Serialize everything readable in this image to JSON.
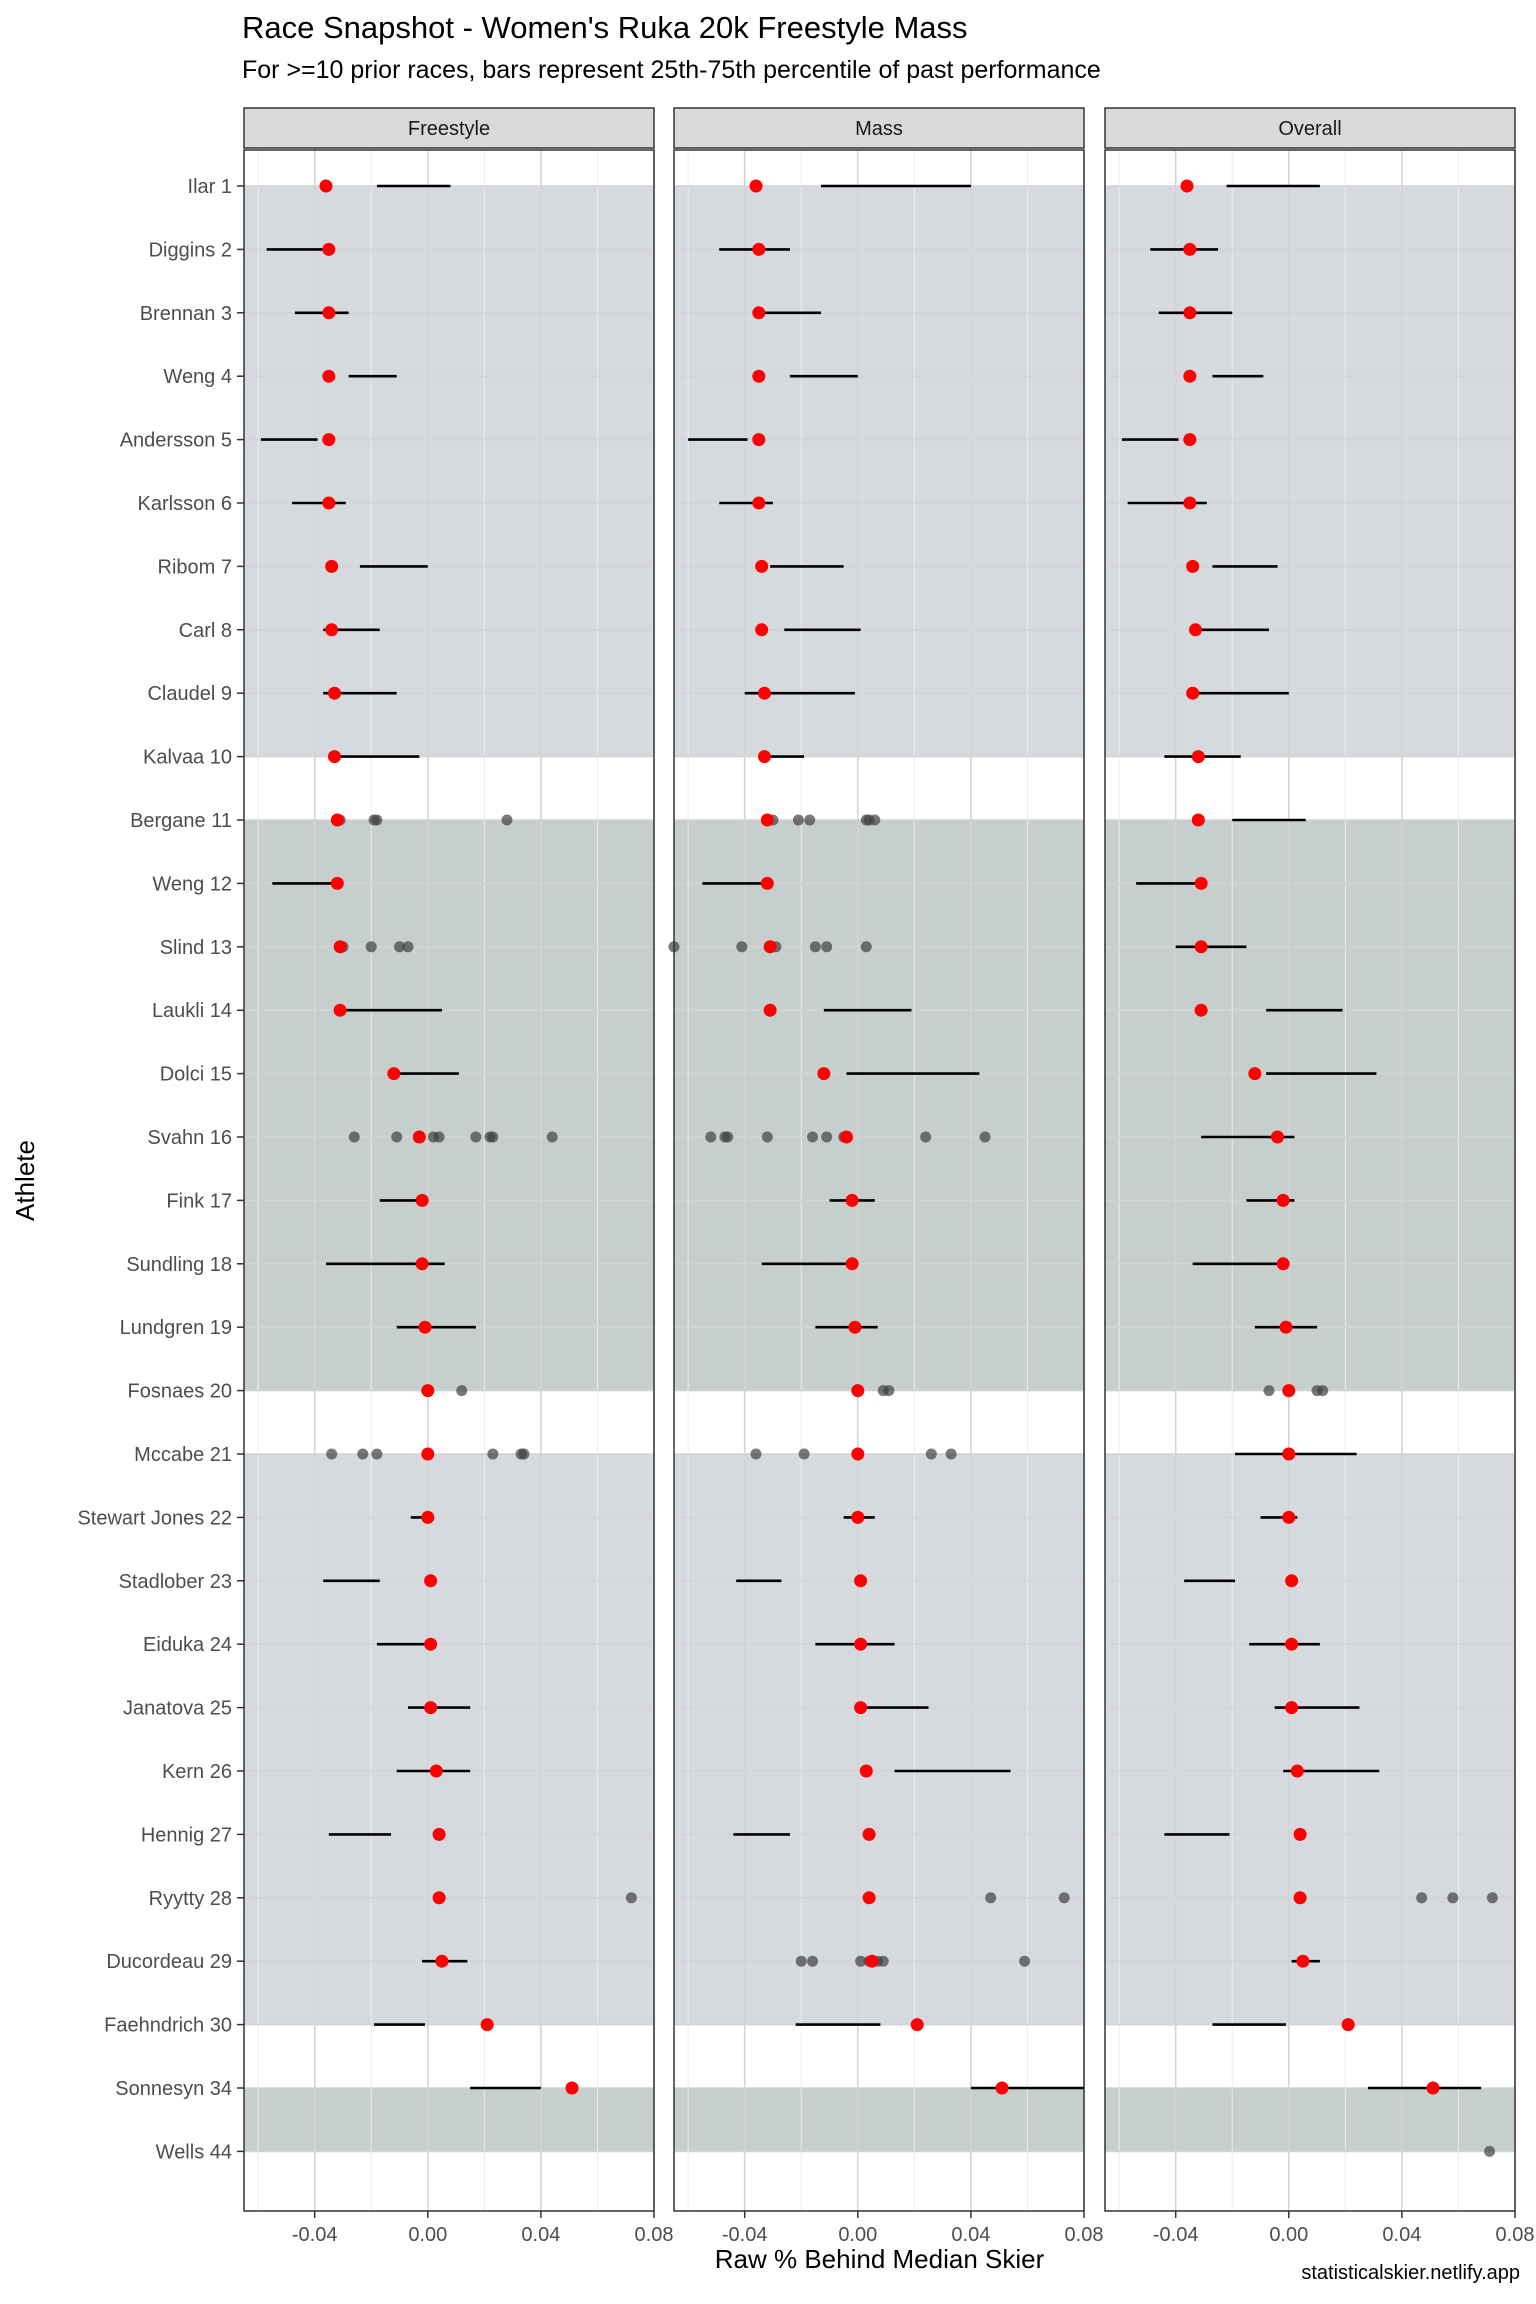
{
  "header": {
    "title": "Race Snapshot -  Women's Ruka 20k Freestyle Mass",
    "subtitle": "For >=10 prior races, bars represent 25th-75th percentile of past performance"
  },
  "footer": {
    "credit": "statisticalskier.netlify.app"
  },
  "colors": {
    "panel_border": "#333333",
    "strip_fill": "#d9d9d9",
    "band_light": "#d6dadf",
    "band_dark": "#c6cfce",
    "grid_major": "#d4d4d4",
    "grid_minor": "#ececec",
    "current_point": "#ff0000",
    "past_point": "#404040",
    "bar": "#000000"
  },
  "chart_data": {
    "type": "scatter",
    "title": "Race Snapshot -  Women's Ruka 20k Freestyle Mass",
    "subtitle": "For >=10 prior races, bars represent 25th-75th percentile of past performance",
    "xlabel": "Raw % Behind Median Skier",
    "ylabel": "Athlete",
    "xlim": [
      -0.065,
      0.08
    ],
    "x_ticks": [
      -0.04,
      0.0,
      0.04,
      0.08
    ],
    "x_tick_labels": [
      "-0.04",
      "0.00",
      "0.04",
      "0.08"
    ],
    "panels": [
      "Freestyle",
      "Mass",
      "Overall"
    ],
    "athletes": [
      "Ilar 1",
      "Diggins 2",
      "Brennan 3",
      "Weng 4",
      "Andersson 5",
      "Karlsson 6",
      "Ribom 7",
      "Carl 8",
      "Claudel 9",
      "Kalvaa 10",
      "Bergane 11",
      "Weng 12",
      "Slind 13",
      "Laukli 14",
      "Dolci 15",
      "Svahn 16",
      "Fink 17",
      "Sundling 18",
      "Lundgren 19",
      "Fosnaes 20",
      "Mccabe 21",
      "Stewart Jones 22",
      "Stadlober 23",
      "Eiduka 24",
      "Janatova 25",
      "Kern 26",
      "Hennig 27",
      "Ryytty 28",
      "Ducordeau 29",
      "Faehndrich 30",
      "Sonnesyn 34",
      "Wells 44"
    ],
    "bands": [
      {
        "from": 0,
        "to": 9,
        "shade": "light"
      },
      {
        "from": 10,
        "to": 19,
        "shade": "dark"
      },
      {
        "from": 20,
        "to": 29,
        "shade": "light"
      },
      {
        "from": 30,
        "to": 31,
        "shade": "dark"
      }
    ],
    "series": [
      {
        "name": "Freestyle",
        "rows": [
          {
            "athlete": "Ilar 1",
            "current": -0.036,
            "bar": [
              -0.018,
              0.008
            ]
          },
          {
            "athlete": "Diggins 2",
            "current": -0.035,
            "bar": [
              -0.057,
              -0.035
            ]
          },
          {
            "athlete": "Brennan 3",
            "current": -0.035,
            "bar": [
              -0.047,
              -0.028
            ]
          },
          {
            "athlete": "Weng 4",
            "current": -0.035,
            "bar": [
              -0.028,
              -0.011
            ]
          },
          {
            "athlete": "Andersson 5",
            "current": -0.035,
            "bar": [
              -0.059,
              -0.039
            ]
          },
          {
            "athlete": "Karlsson 6",
            "current": -0.035,
            "bar": [
              -0.048,
              -0.029
            ]
          },
          {
            "athlete": "Ribom 7",
            "current": -0.034,
            "bar": [
              -0.024,
              0.0
            ]
          },
          {
            "athlete": "Carl 8",
            "current": -0.034,
            "bar": [
              -0.037,
              -0.017
            ]
          },
          {
            "athlete": "Claudel 9",
            "current": -0.033,
            "bar": [
              -0.037,
              -0.011
            ]
          },
          {
            "athlete": "Kalvaa 10",
            "current": -0.033,
            "bar": [
              -0.031,
              -0.003
            ]
          },
          {
            "athlete": "Bergane 11",
            "current": -0.032,
            "past": [
              -0.031,
              -0.019,
              -0.018,
              0.028
            ]
          },
          {
            "athlete": "Weng 12",
            "current": -0.032,
            "bar": [
              -0.055,
              -0.033
            ]
          },
          {
            "athlete": "Slind 13",
            "current": -0.031,
            "past": [
              -0.031,
              -0.03,
              -0.02,
              -0.01,
              -0.007
            ]
          },
          {
            "athlete": "Laukli 14",
            "current": -0.031,
            "bar": [
              -0.031,
              0.005
            ]
          },
          {
            "athlete": "Dolci 15",
            "current": -0.012,
            "bar": [
              -0.012,
              0.011
            ]
          },
          {
            "athlete": "Svahn 16",
            "current": -0.003,
            "past": [
              -0.026,
              -0.011,
              0.002,
              0.004,
              0.017,
              0.022,
              0.023,
              0.044
            ]
          },
          {
            "athlete": "Fink 17",
            "current": -0.002,
            "bar": [
              -0.017,
              0.0
            ]
          },
          {
            "athlete": "Sundling 18",
            "current": -0.002,
            "bar": [
              -0.036,
              0.006
            ]
          },
          {
            "athlete": "Lundgren 19",
            "current": -0.001,
            "bar": [
              -0.011,
              0.017
            ]
          },
          {
            "athlete": "Fosnaes 20",
            "current": 0.0,
            "past": [
              0.012
            ]
          },
          {
            "athlete": "Mccabe 21",
            "current": 0.0,
            "past": [
              -0.034,
              -0.023,
              -0.018,
              0.0,
              0.023,
              0.033,
              0.034
            ]
          },
          {
            "athlete": "Stewart Jones 22",
            "current": 0.0,
            "bar": [
              -0.006,
              0.002
            ]
          },
          {
            "athlete": "Stadlober 23",
            "current": 0.001,
            "bar": [
              -0.037,
              -0.017
            ]
          },
          {
            "athlete": "Eiduka 24",
            "current": 0.001,
            "bar": [
              -0.018,
              0.0
            ]
          },
          {
            "athlete": "Janatova 25",
            "current": 0.001,
            "bar": [
              -0.007,
              0.015
            ]
          },
          {
            "athlete": "Kern 26",
            "current": 0.003,
            "bar": [
              -0.011,
              0.015
            ]
          },
          {
            "athlete": "Hennig 27",
            "current": 0.004,
            "bar": [
              -0.035,
              -0.013
            ]
          },
          {
            "athlete": "Ryytty 28",
            "current": 0.004,
            "past": [
              0.072
            ]
          },
          {
            "athlete": "Ducordeau 29",
            "current": 0.005,
            "bar": [
              -0.002,
              0.014
            ]
          },
          {
            "athlete": "Faehndrich 30",
            "current": 0.021,
            "bar": [
              -0.019,
              -0.001
            ]
          },
          {
            "athlete": "Sonnesyn 34",
            "current": 0.051,
            "bar": [
              0.015,
              0.04
            ]
          },
          {
            "athlete": "Wells 44"
          }
        ]
      },
      {
        "name": "Mass",
        "rows": [
          {
            "athlete": "Ilar 1",
            "current": -0.036,
            "bar": [
              -0.013,
              0.04
            ]
          },
          {
            "athlete": "Diggins 2",
            "current": -0.035,
            "bar": [
              -0.049,
              -0.024
            ]
          },
          {
            "athlete": "Brennan 3",
            "current": -0.035,
            "bar": [
              -0.035,
              -0.013
            ]
          },
          {
            "athlete": "Weng 4",
            "current": -0.035,
            "bar": [
              -0.024,
              0.0
            ]
          },
          {
            "athlete": "Andersson 5",
            "current": -0.035,
            "bar": [
              -0.06,
              -0.039
            ]
          },
          {
            "athlete": "Karlsson 6",
            "current": -0.035,
            "bar": [
              -0.049,
              -0.03
            ]
          },
          {
            "athlete": "Ribom 7",
            "current": -0.034,
            "bar": [
              -0.031,
              -0.005
            ]
          },
          {
            "athlete": "Carl 8",
            "current": -0.034,
            "bar": [
              -0.026,
              0.001
            ]
          },
          {
            "athlete": "Claudel 9",
            "current": -0.033,
            "bar": [
              -0.04,
              -0.001
            ]
          },
          {
            "athlete": "Kalvaa 10",
            "current": -0.033,
            "bar": [
              -0.033,
              -0.019
            ]
          },
          {
            "athlete": "Bergane 11",
            "current": -0.032,
            "past": [
              -0.03,
              -0.021,
              -0.017,
              0.003,
              0.004,
              0.006
            ]
          },
          {
            "athlete": "Weng 12",
            "current": -0.032,
            "bar": [
              -0.055,
              -0.032
            ]
          },
          {
            "athlete": "Slind 13",
            "current": -0.031,
            "past": [
              -0.065,
              -0.041,
              -0.031,
              -0.029,
              -0.015,
              -0.011,
              0.003
            ]
          },
          {
            "athlete": "Laukli 14",
            "current": -0.031,
            "bar": [
              -0.012,
              0.019
            ]
          },
          {
            "athlete": "Dolci 15",
            "current": -0.012,
            "bar": [
              -0.004,
              0.043
            ]
          },
          {
            "athlete": "Svahn 16",
            "current": -0.004,
            "past": [
              -0.052,
              -0.047,
              -0.046,
              -0.032,
              -0.016,
              -0.011,
              -0.005,
              0.024,
              0.045
            ]
          },
          {
            "athlete": "Fink 17",
            "current": -0.002,
            "bar": [
              -0.01,
              0.006
            ]
          },
          {
            "athlete": "Sundling 18",
            "current": -0.002,
            "bar": [
              -0.034,
              0.0
            ]
          },
          {
            "athlete": "Lundgren 19",
            "current": -0.001,
            "bar": [
              -0.015,
              0.007
            ]
          },
          {
            "athlete": "Fosnaes 20",
            "current": 0.0,
            "past": [
              0.0,
              0.009,
              0.011
            ]
          },
          {
            "athlete": "Mccabe 21",
            "current": 0.0,
            "past": [
              -0.036,
              -0.019,
              0.0,
              0.026,
              0.033
            ]
          },
          {
            "athlete": "Stewart Jones 22",
            "current": 0.0,
            "bar": [
              -0.005,
              0.006
            ]
          },
          {
            "athlete": "Stadlober 23",
            "current": 0.001,
            "bar": [
              -0.043,
              -0.027
            ]
          },
          {
            "athlete": "Eiduka 24",
            "current": 0.001,
            "bar": [
              -0.015,
              0.013
            ]
          },
          {
            "athlete": "Janatova 25",
            "current": 0.001,
            "bar": [
              0.0,
              0.025
            ]
          },
          {
            "athlete": "Kern 26",
            "current": 0.003,
            "bar": [
              0.013,
              0.054
            ]
          },
          {
            "athlete": "Hennig 27",
            "current": 0.004,
            "bar": [
              -0.044,
              -0.024
            ]
          },
          {
            "athlete": "Ryytty 28",
            "current": 0.004,
            "past": [
              0.047,
              0.073
            ]
          },
          {
            "athlete": "Ducordeau 29",
            "current": 0.005,
            "past": [
              -0.02,
              -0.016,
              0.001,
              0.004,
              0.007,
              0.009,
              0.059
            ]
          },
          {
            "athlete": "Faehndrich 30",
            "current": 0.021,
            "bar": [
              -0.022,
              0.008
            ]
          },
          {
            "athlete": "Sonnesyn 34",
            "current": 0.051,
            "bar": [
              0.04,
              0.08
            ]
          },
          {
            "athlete": "Wells 44"
          }
        ]
      },
      {
        "name": "Overall",
        "rows": [
          {
            "athlete": "Ilar 1",
            "current": -0.036,
            "bar": [
              -0.022,
              0.011
            ]
          },
          {
            "athlete": "Diggins 2",
            "current": -0.035,
            "bar": [
              -0.049,
              -0.025
            ]
          },
          {
            "athlete": "Brennan 3",
            "current": -0.035,
            "bar": [
              -0.046,
              -0.02
            ]
          },
          {
            "athlete": "Weng 4",
            "current": -0.035,
            "bar": [
              -0.027,
              -0.009
            ]
          },
          {
            "athlete": "Andersson 5",
            "current": -0.035,
            "bar": [
              -0.059,
              -0.039
            ]
          },
          {
            "athlete": "Karlsson 6",
            "current": -0.035,
            "bar": [
              -0.057,
              -0.029
            ]
          },
          {
            "athlete": "Ribom 7",
            "current": -0.034,
            "bar": [
              -0.027,
              -0.004
            ]
          },
          {
            "athlete": "Carl 8",
            "current": -0.033,
            "bar": [
              -0.033,
              -0.007
            ]
          },
          {
            "athlete": "Claudel 9",
            "current": -0.034,
            "bar": [
              -0.034,
              0.0
            ]
          },
          {
            "athlete": "Kalvaa 10",
            "current": -0.032,
            "bar": [
              -0.044,
              -0.017
            ]
          },
          {
            "athlete": "Bergane 11",
            "current": -0.032,
            "bar": [
              -0.02,
              0.006
            ]
          },
          {
            "athlete": "Weng 12",
            "current": -0.031,
            "bar": [
              -0.054,
              -0.032
            ]
          },
          {
            "athlete": "Slind 13",
            "current": -0.031,
            "bar": [
              -0.04,
              -0.015
            ]
          },
          {
            "athlete": "Laukli 14",
            "current": -0.031,
            "bar": [
              -0.008,
              0.019
            ]
          },
          {
            "athlete": "Dolci 15",
            "current": -0.012,
            "bar": [
              -0.008,
              0.031
            ]
          },
          {
            "athlete": "Svahn 16",
            "current": -0.004,
            "bar": [
              -0.031,
              0.002
            ]
          },
          {
            "athlete": "Fink 17",
            "current": -0.002,
            "bar": [
              -0.015,
              0.002
            ]
          },
          {
            "athlete": "Sundling 18",
            "current": -0.002,
            "bar": [
              -0.034,
              0.0
            ]
          },
          {
            "athlete": "Lundgren 19",
            "current": -0.001,
            "bar": [
              -0.012,
              0.01
            ]
          },
          {
            "athlete": "Fosnaes 20",
            "current": 0.0,
            "past": [
              -0.007,
              0.0,
              0.01,
              0.012
            ]
          },
          {
            "athlete": "Mccabe 21",
            "current": 0.0,
            "bar": [
              -0.019,
              0.024
            ]
          },
          {
            "athlete": "Stewart Jones 22",
            "current": 0.0,
            "bar": [
              -0.01,
              0.003
            ]
          },
          {
            "athlete": "Stadlober 23",
            "current": 0.001,
            "bar": [
              -0.037,
              -0.019
            ]
          },
          {
            "athlete": "Eiduka 24",
            "current": 0.001,
            "bar": [
              -0.014,
              0.011
            ]
          },
          {
            "athlete": "Janatova 25",
            "current": 0.001,
            "bar": [
              -0.005,
              0.025
            ]
          },
          {
            "athlete": "Kern 26",
            "current": 0.003,
            "bar": [
              -0.002,
              0.032
            ]
          },
          {
            "athlete": "Hennig 27",
            "current": 0.004,
            "bar": [
              -0.044,
              -0.021
            ]
          },
          {
            "athlete": "Ryytty 28",
            "current": 0.004,
            "past": [
              0.047,
              0.058,
              0.072
            ]
          },
          {
            "athlete": "Ducordeau 29",
            "current": 0.005,
            "bar": [
              0.001,
              0.011
            ]
          },
          {
            "athlete": "Faehndrich 30",
            "current": 0.021,
            "bar": [
              -0.027,
              -0.001
            ]
          },
          {
            "athlete": "Sonnesyn 34",
            "current": 0.051,
            "bar": [
              0.028,
              0.068
            ]
          },
          {
            "athlete": "Wells 44",
            "past": [
              0.071
            ]
          }
        ]
      }
    ]
  }
}
